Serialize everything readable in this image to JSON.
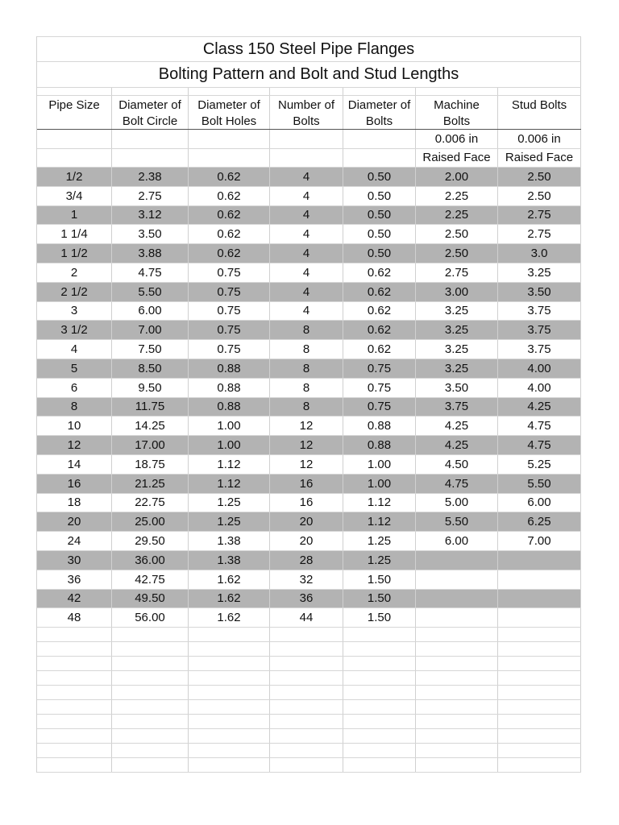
{
  "title": "Class 150  Steel Pipe Flanges",
  "subtitle": "Bolting Pattern and Bolt and Stud Lengths",
  "headers": [
    [
      "Pipe Size",
      ""
    ],
    [
      "Diameter of",
      "Bolt Circle"
    ],
    [
      "Diameter of",
      "Bolt Holes"
    ],
    [
      "Number of",
      "Bolts"
    ],
    [
      "Diameter of",
      "Bolts"
    ],
    [
      "Machine",
      "Bolts"
    ],
    [
      "Stud Bolts",
      ""
    ]
  ],
  "subheaders": [
    [
      "",
      "",
      "",
      "",
      "",
      "0.006 in",
      "0.006 in"
    ],
    [
      "",
      "",
      "",
      "",
      "",
      "Raised Face",
      "Raised Face"
    ]
  ],
  "shading_color": "#b3b3b3",
  "rows": [
    [
      "1/2",
      "2.38",
      "0.62",
      "4",
      "0.50",
      "2.00",
      "2.50"
    ],
    [
      "3/4",
      "2.75",
      "0.62",
      "4",
      "0.50",
      "2.25",
      "2.50"
    ],
    [
      "1",
      "3.12",
      "0.62",
      "4",
      "0.50",
      "2.25",
      "2.75"
    ],
    [
      "1 1/4",
      "3.50",
      "0.62",
      "4",
      "0.50",
      "2.50",
      "2.75"
    ],
    [
      "1 1/2",
      "3.88",
      "0.62",
      "4",
      "0.50",
      "2.50",
      "3.0"
    ],
    [
      "2",
      "4.75",
      "0.75",
      "4",
      "0.62",
      "2.75",
      "3.25"
    ],
    [
      "2 1/2",
      "5.50",
      "0.75",
      "4",
      "0.62",
      "3.00",
      "3.50"
    ],
    [
      "3",
      "6.00",
      "0.75",
      "4",
      "0.62",
      "3.25",
      "3.75"
    ],
    [
      "3 1/2",
      "7.00",
      "0.75",
      "8",
      "0.62",
      "3.25",
      "3.75"
    ],
    [
      "4",
      "7.50",
      "0.75",
      "8",
      "0.62",
      "3.25",
      "3.75"
    ],
    [
      "5",
      "8.50",
      "0.88",
      "8",
      "0.75",
      "3.25",
      "4.00"
    ],
    [
      "6",
      "9.50",
      "0.88",
      "8",
      "0.75",
      "3.50",
      "4.00"
    ],
    [
      "8",
      "11.75",
      "0.88",
      "8",
      "0.75",
      "3.75",
      "4.25"
    ],
    [
      "10",
      "14.25",
      "1.00",
      "12",
      "0.88",
      "4.25",
      "4.75"
    ],
    [
      "12",
      "17.00",
      "1.00",
      "12",
      "0.88",
      "4.25",
      "4.75"
    ],
    [
      "14",
      "18.75",
      "1.12",
      "12",
      "1.00",
      "4.50",
      "5.25"
    ],
    [
      "16",
      "21.25",
      "1.12",
      "16",
      "1.00",
      "4.75",
      "5.50"
    ],
    [
      "18",
      "22.75",
      "1.25",
      "16",
      "1.12",
      "5.00",
      "6.00"
    ],
    [
      "20",
      "25.00",
      "1.25",
      "20",
      "1.12",
      "5.50",
      "6.25"
    ],
    [
      "24",
      "29.50",
      "1.38",
      "20",
      "1.25",
      "6.00",
      "7.00"
    ],
    [
      "30",
      "36.00",
      "1.38",
      "28",
      "1.25",
      "",
      ""
    ],
    [
      "36",
      "42.75",
      "1.62",
      "32",
      "1.50",
      "",
      ""
    ],
    [
      "42",
      "49.50",
      "1.62",
      "36",
      "1.50",
      "",
      ""
    ],
    [
      "48",
      "56.00",
      "1.62",
      "44",
      "1.50",
      "",
      ""
    ]
  ]
}
